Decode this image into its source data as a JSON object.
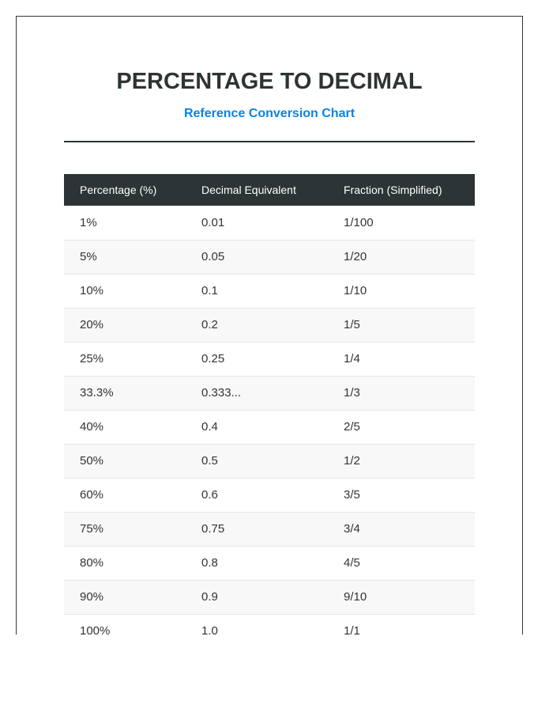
{
  "header": {
    "title": "PERCENTAGE TO DECIMAL",
    "subtitle": "Reference Conversion Chart"
  },
  "colors": {
    "title": "#2d3436",
    "subtitle": "#0984e3",
    "header_bg": "#2d3436",
    "row_alt_bg": "#f8f8f8"
  },
  "table": {
    "columns": [
      "Percentage (%)",
      "Decimal Equivalent",
      "Fraction (Simplified)"
    ],
    "rows": [
      [
        "1%",
        "0.01",
        "1/100"
      ],
      [
        "5%",
        "0.05",
        "1/20"
      ],
      [
        "10%",
        "0.1",
        "1/10"
      ],
      [
        "20%",
        "0.2",
        "1/5"
      ],
      [
        "25%",
        "0.25",
        "1/4"
      ],
      [
        "33.3%",
        "0.333...",
        "1/3"
      ],
      [
        "40%",
        "0.4",
        "2/5"
      ],
      [
        "50%",
        "0.5",
        "1/2"
      ],
      [
        "60%",
        "0.6",
        "3/5"
      ],
      [
        "75%",
        "0.75",
        "3/4"
      ],
      [
        "80%",
        "0.8",
        "4/5"
      ],
      [
        "90%",
        "0.9",
        "9/10"
      ],
      [
        "100%",
        "1.0",
        "1/1"
      ]
    ]
  }
}
